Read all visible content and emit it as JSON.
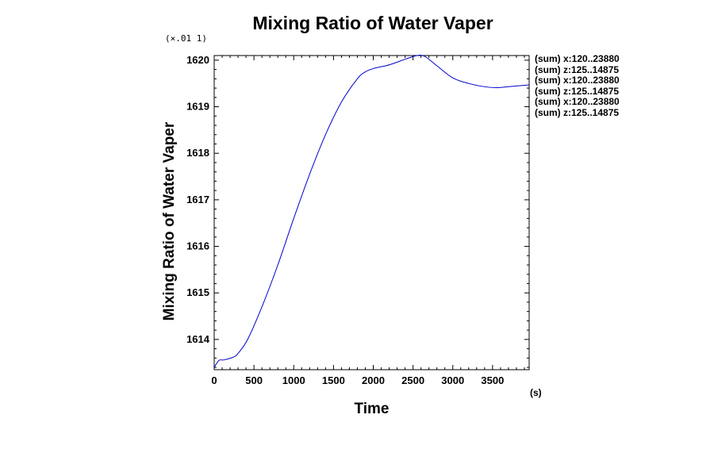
{
  "chart_data": {
    "type": "line",
    "title": "Mixing Ratio of Water Vaper",
    "xlabel": "Time",
    "ylabel": "Mixing Ratio of Water Vaper",
    "x_unit": "(s)",
    "y_multiplier": "(×.01 1)",
    "xlim": [
      0,
      3960
    ],
    "ylim": [
      1613.35,
      1620.1
    ],
    "x_ticks": [
      "0",
      "500",
      "1000",
      "1500",
      "2000",
      "2500",
      "3000",
      "3500"
    ],
    "x_tick_values": [
      0,
      500,
      1000,
      1500,
      2000,
      2500,
      3000,
      3500
    ],
    "y_ticks": [
      "1614",
      "1615",
      "1616",
      "1617",
      "1618",
      "1619",
      "1620"
    ],
    "y_tick_values": [
      1614,
      1615,
      1616,
      1617,
      1618,
      1619,
      1620
    ],
    "legend": [
      "(sum) x:120..23880",
      "(sum) z:125..14875",
      "(sum) x:120..23880",
      "(sum) z:125..14875",
      "(sum) x:120..23880",
      "(sum) z:125..14875"
    ],
    "legend_position": "right",
    "grid": false,
    "colors": {
      "line": "#0000cc",
      "axes": "#000000"
    },
    "series": [
      {
        "x": [
          0,
          60,
          120,
          240,
          300,
          420,
          600,
          800,
          1000,
          1200,
          1400,
          1600,
          1800,
          1900,
          2000,
          2200,
          2400,
          2550,
          2650,
          2800,
          3000,
          3200,
          3400,
          3550,
          3700,
          3960
        ],
        "y": [
          1613.4,
          1613.55,
          1613.56,
          1613.62,
          1613.7,
          1614.0,
          1614.7,
          1615.6,
          1616.6,
          1617.55,
          1618.4,
          1619.1,
          1619.6,
          1619.75,
          1619.82,
          1619.9,
          1620.02,
          1620.1,
          1620.08,
          1619.88,
          1619.62,
          1619.5,
          1619.43,
          1619.41,
          1619.43,
          1619.47
        ]
      }
    ]
  }
}
